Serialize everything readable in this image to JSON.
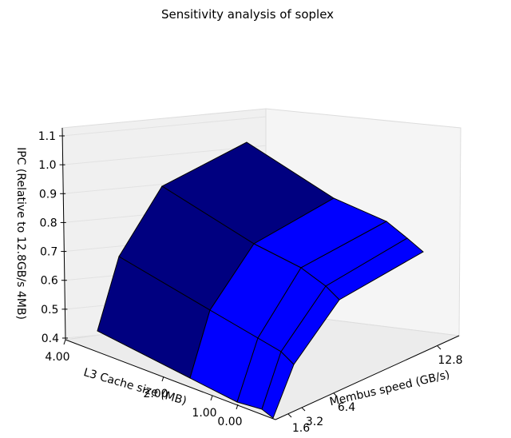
{
  "chart_data": {
    "type": "surface3d",
    "title": "Sensitivity analysis of soplex",
    "xlabel": "L3 Cache size (MB)",
    "ylabel": "Membus speed (GB/s)",
    "zlabel": "IPC (Relative to 12.8GB/s 4MB)",
    "x_tick_labels": [
      "4.00",
      "2.00",
      "1.00",
      "0.00"
    ],
    "y_tick_labels": [
      "1.6",
      "3.2",
      "6.4",
      "12.8"
    ],
    "z_tick_labels": [
      "0.4",
      "0.5",
      "0.6",
      "0.7",
      "0.8",
      "0.9",
      "1.0",
      "1.1"
    ],
    "zlim": [
      0.4,
      1.1
    ],
    "grid": true,
    "colors": {
      "high": "#000080",
      "low": "#0000ff",
      "edge": "#000000",
      "pane": "#f2f2f2"
    }
  }
}
